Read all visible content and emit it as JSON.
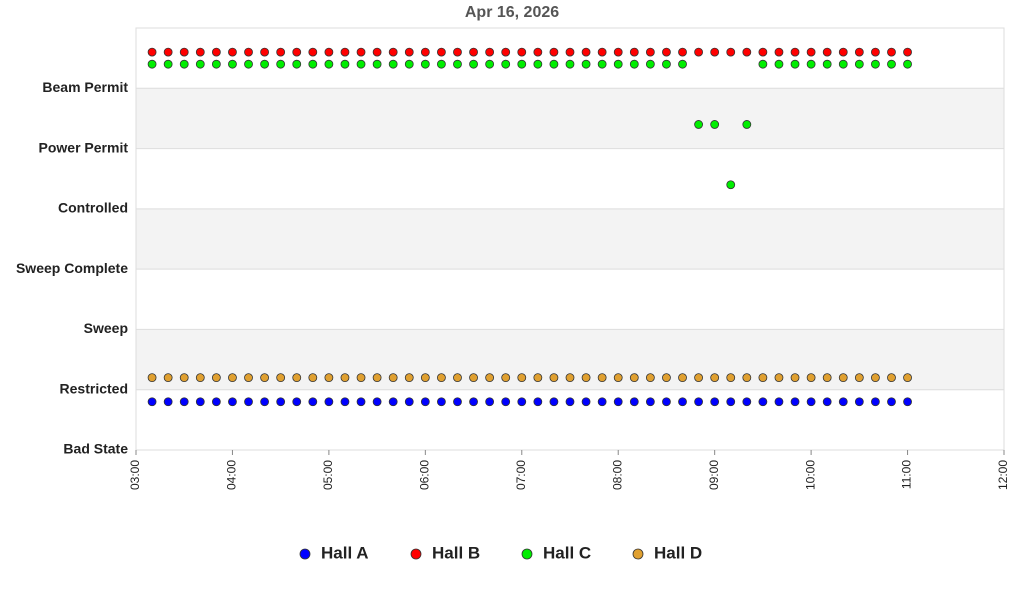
{
  "chart_data": {
    "type": "scatter",
    "title": "Apr 16, 2026",
    "x": [
      "03:10",
      "03:20",
      "03:30",
      "03:40",
      "03:50",
      "04:00",
      "04:10",
      "04:20",
      "04:30",
      "04:40",
      "04:50",
      "05:00",
      "05:10",
      "05:20",
      "05:30",
      "05:40",
      "05:50",
      "06:00",
      "06:10",
      "06:20",
      "06:30",
      "06:40",
      "06:50",
      "07:00",
      "07:10",
      "07:20",
      "07:30",
      "07:40",
      "07:50",
      "08:00",
      "08:10",
      "08:20",
      "08:30",
      "08:40",
      "08:50",
      "09:00",
      "09:10",
      "09:20",
      "09:30",
      "09:40",
      "09:50",
      "10:00",
      "10:10",
      "10:20",
      "10:30",
      "10:40",
      "10:50",
      "11:00"
    ],
    "xlim": [
      "03:00",
      "12:00"
    ],
    "xticks": [
      "03:00",
      "04:00",
      "05:00",
      "06:00",
      "07:00",
      "08:00",
      "09:00",
      "10:00",
      "11:00",
      "12:00"
    ],
    "ylim": [
      0,
      7
    ],
    "yticks": [
      {
        "value": 0,
        "label": "Bad State"
      },
      {
        "value": 1,
        "label": "Restricted"
      },
      {
        "value": 2,
        "label": "Sweep"
      },
      {
        "value": 3,
        "label": "Sweep Complete"
      },
      {
        "value": 4,
        "label": "Controlled"
      },
      {
        "value": 5,
        "label": "Power Permit"
      },
      {
        "value": 6,
        "label": "Beam Permit"
      }
    ],
    "series": [
      {
        "name": "Hall A",
        "color": "#0000ff",
        "values": [
          0.8,
          0.8,
          0.8,
          0.8,
          0.8,
          0.8,
          0.8,
          0.8,
          0.8,
          0.8,
          0.8,
          0.8,
          0.8,
          0.8,
          0.8,
          0.8,
          0.8,
          0.8,
          0.8,
          0.8,
          0.8,
          0.8,
          0.8,
          0.8,
          0.8,
          0.8,
          0.8,
          0.8,
          0.8,
          0.8,
          0.8,
          0.8,
          0.8,
          0.8,
          0.8,
          0.8,
          0.8,
          0.8,
          0.8,
          0.8,
          0.8,
          0.8,
          0.8,
          0.8,
          0.8,
          0.8,
          0.8,
          0.8
        ]
      },
      {
        "name": "Hall B",
        "color": "#ff0000",
        "values": [
          6.6,
          6.6,
          6.6,
          6.6,
          6.6,
          6.6,
          6.6,
          6.6,
          6.6,
          6.6,
          6.6,
          6.6,
          6.6,
          6.6,
          6.6,
          6.6,
          6.6,
          6.6,
          6.6,
          6.6,
          6.6,
          6.6,
          6.6,
          6.6,
          6.6,
          6.6,
          6.6,
          6.6,
          6.6,
          6.6,
          6.6,
          6.6,
          6.6,
          6.6,
          6.6,
          6.6,
          6.6,
          6.6,
          6.6,
          6.6,
          6.6,
          6.6,
          6.6,
          6.6,
          6.6,
          6.6,
          6.6,
          6.6
        ]
      },
      {
        "name": "Hall C",
        "color": "#00ee00",
        "values": [
          6.4,
          6.4,
          6.4,
          6.4,
          6.4,
          6.4,
          6.4,
          6.4,
          6.4,
          6.4,
          6.4,
          6.4,
          6.4,
          6.4,
          6.4,
          6.4,
          6.4,
          6.4,
          6.4,
          6.4,
          6.4,
          6.4,
          6.4,
          6.4,
          6.4,
          6.4,
          6.4,
          6.4,
          6.4,
          6.4,
          6.4,
          6.4,
          6.4,
          6.4,
          5.4,
          5.4,
          4.4,
          5.4,
          6.4,
          6.4,
          6.4,
          6.4,
          6.4,
          6.4,
          6.4,
          6.4,
          6.4,
          6.4
        ]
      },
      {
        "name": "Hall D",
        "color": "#e0a030",
        "values": [
          1.2,
          1.2,
          1.2,
          1.2,
          1.2,
          1.2,
          1.2,
          1.2,
          1.2,
          1.2,
          1.2,
          1.2,
          1.2,
          1.2,
          1.2,
          1.2,
          1.2,
          1.2,
          1.2,
          1.2,
          1.2,
          1.2,
          1.2,
          1.2,
          1.2,
          1.2,
          1.2,
          1.2,
          1.2,
          1.2,
          1.2,
          1.2,
          1.2,
          1.2,
          1.2,
          1.2,
          1.2,
          1.2,
          1.2,
          1.2,
          1.2,
          1.2,
          1.2,
          1.2,
          1.2,
          1.2,
          1.2,
          1.2
        ]
      }
    ],
    "grid": true,
    "legend": "bottom"
  }
}
